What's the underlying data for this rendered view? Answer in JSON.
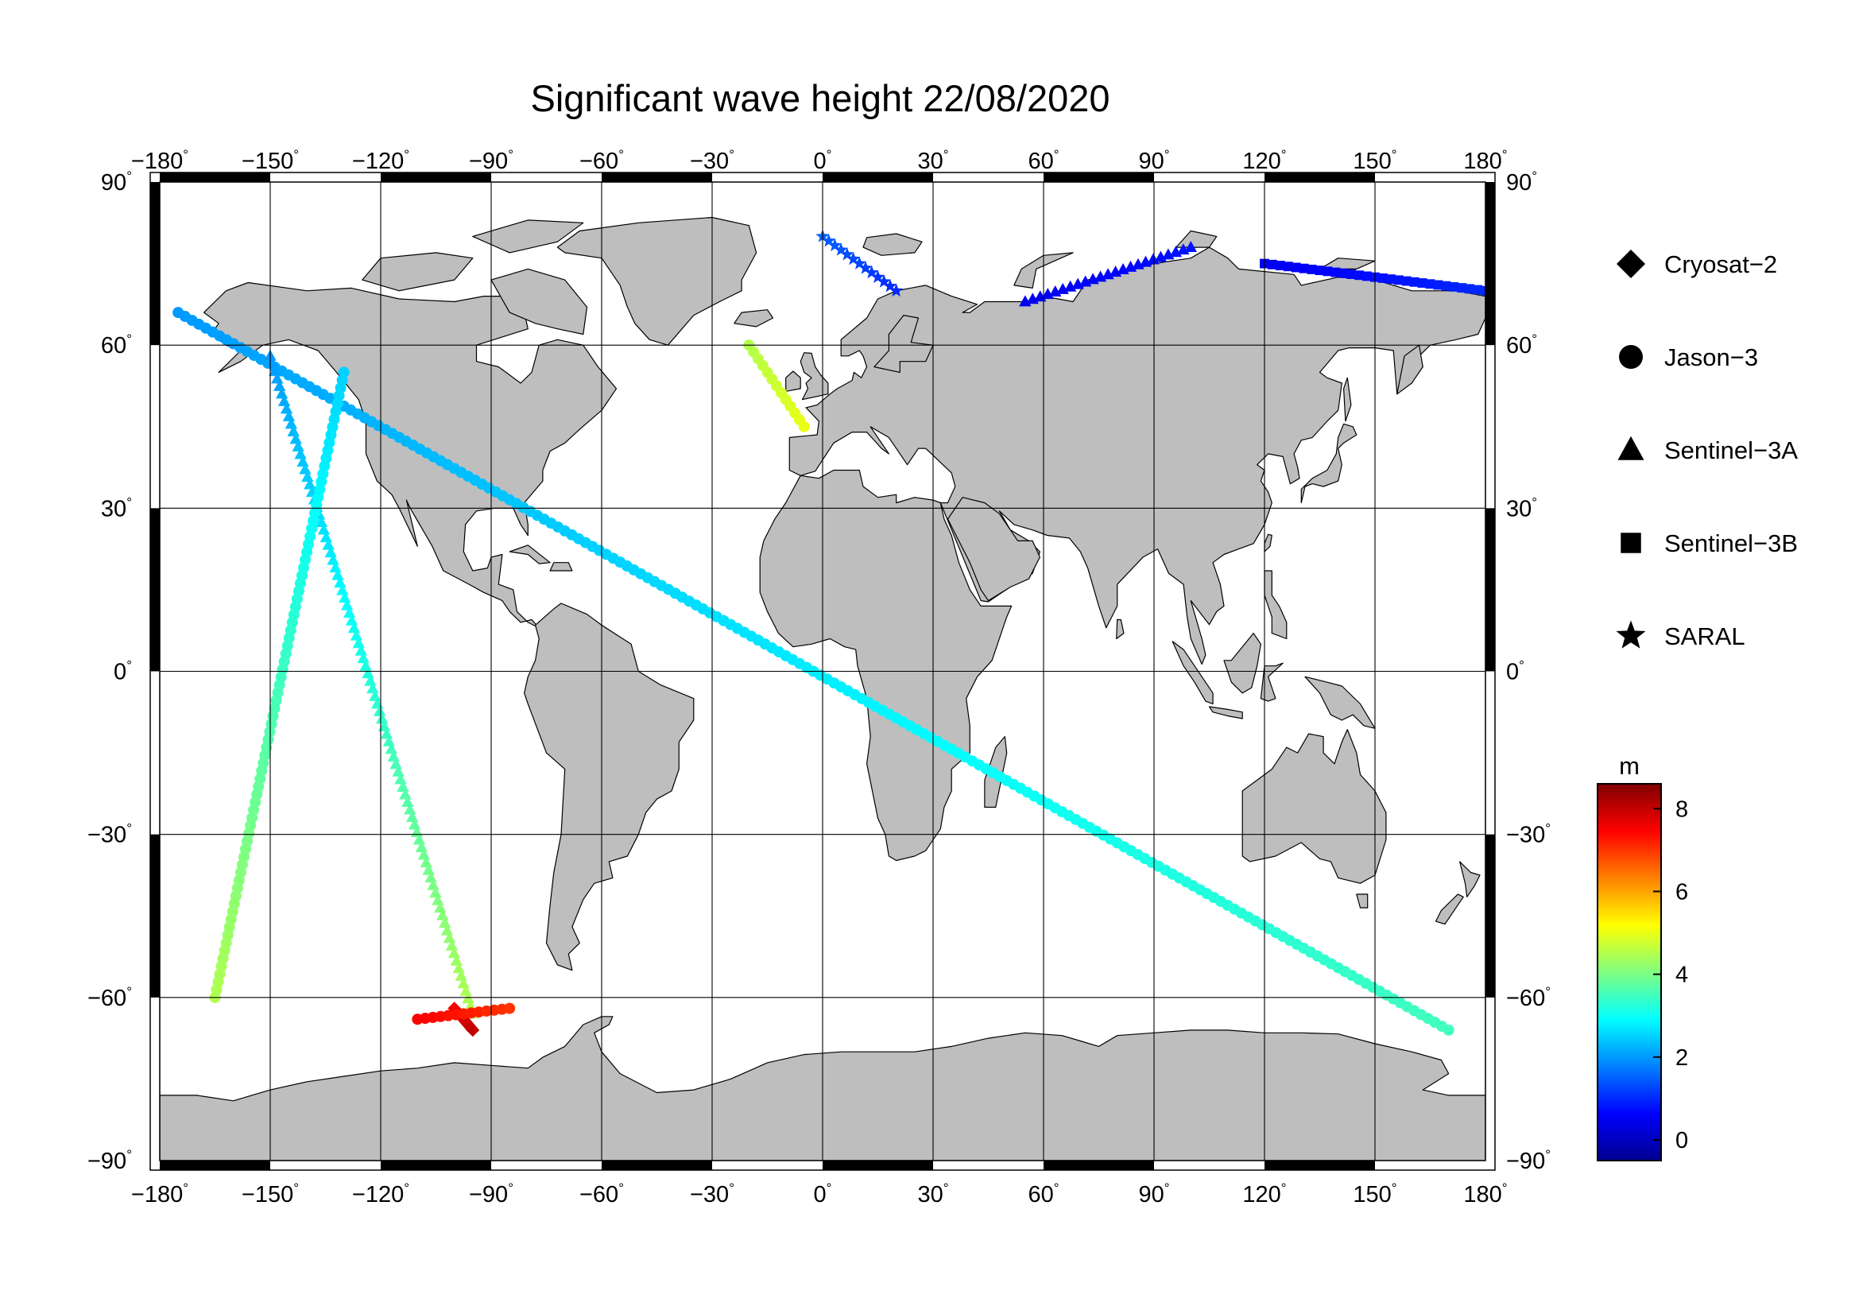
{
  "title": "Significant wave height 22/08/2020",
  "axes": {
    "lon_ticks": [
      -180,
      -150,
      -120,
      -90,
      -60,
      -30,
      0,
      30,
      60,
      90,
      120,
      150,
      180
    ],
    "lat_ticks": [
      90,
      60,
      30,
      0,
      -30,
      -60,
      -90
    ],
    "lon_range": [
      -180,
      180
    ],
    "lat_range": [
      -90,
      90
    ],
    "grid": true,
    "degree_symbol": "°"
  },
  "legend": {
    "placement": "right",
    "items": [
      {
        "label": "Cryosat−2",
        "symbol": "diamond"
      },
      {
        "label": "Jason−3",
        "symbol": "circle"
      },
      {
        "label": "Sentinel−3A",
        "symbol": "triangle"
      },
      {
        "label": "Sentinel−3B",
        "symbol": "square"
      },
      {
        "label": "SARAL",
        "symbol": "star"
      }
    ]
  },
  "colorbar": {
    "unit": "m",
    "ticks": [
      8,
      6,
      4,
      2,
      0
    ],
    "range": [
      -0.5,
      8.6
    ],
    "colormap": [
      "#00008f",
      "#0000ff",
      "#0080ff",
      "#00ffff",
      "#80ff80",
      "#ffff00",
      "#ff8000",
      "#ff0000",
      "#800000"
    ]
  },
  "colors": {
    "land": "#bebebe",
    "land_edge": "#000000",
    "ocean": "#ffffff",
    "grid": "#000000",
    "frame": "#000000"
  },
  "chart_data": {
    "type": "scatter",
    "title": "Significant wave height 22/08/2020",
    "xlabel": "",
    "ylabel": "",
    "xlim": [
      -180,
      180
    ],
    "ylim": [
      -90,
      90
    ],
    "color_unit": "m",
    "tracks": [
      {
        "satellite": "Jason−3",
        "lon": [
          -175,
          170
        ],
        "lat": [
          66,
          -66
        ],
        "swh": [
          2.0,
          3.5
        ]
      },
      {
        "satellite": "Sentinel−3A",
        "lon": [
          -150,
          -95
        ],
        "lat": [
          58,
          -63
        ],
        "swh": [
          2.0,
          4.5
        ]
      },
      {
        "satellite": "Jason−3",
        "lon": [
          -165,
          -130
        ],
        "lat": [
          -60,
          55
        ],
        "swh": [
          4.5,
          2.5
        ]
      },
      {
        "satellite": "Jason−3",
        "lon": [
          -20,
          -5
        ],
        "lat": [
          60,
          45
        ],
        "swh": [
          4.5,
          5.0
        ]
      },
      {
        "satellite": "Cryosat−2",
        "lon": [
          -100,
          -95
        ],
        "lat": [
          -62,
          -66
        ],
        "swh": [
          7.5,
          8.0
        ]
      },
      {
        "satellite": "Jason−3",
        "lon": [
          -110,
          -85
        ],
        "lat": [
          -64,
          -62
        ],
        "swh": [
          7.5,
          7.0
        ]
      },
      {
        "satellite": "SARAL",
        "lon": [
          0,
          20
        ],
        "lat": [
          80,
          70
        ],
        "swh": [
          1.5,
          1.0
        ]
      },
      {
        "satellite": "Sentinel−3B",
        "lon": [
          120,
          180
        ],
        "lat": [
          75,
          70
        ],
        "swh": [
          0.5,
          1.0
        ]
      },
      {
        "satellite": "Sentinel−3A",
        "lon": [
          55,
          100
        ],
        "lat": [
          68,
          78
        ],
        "swh": [
          0.5,
          0.8
        ]
      }
    ]
  }
}
